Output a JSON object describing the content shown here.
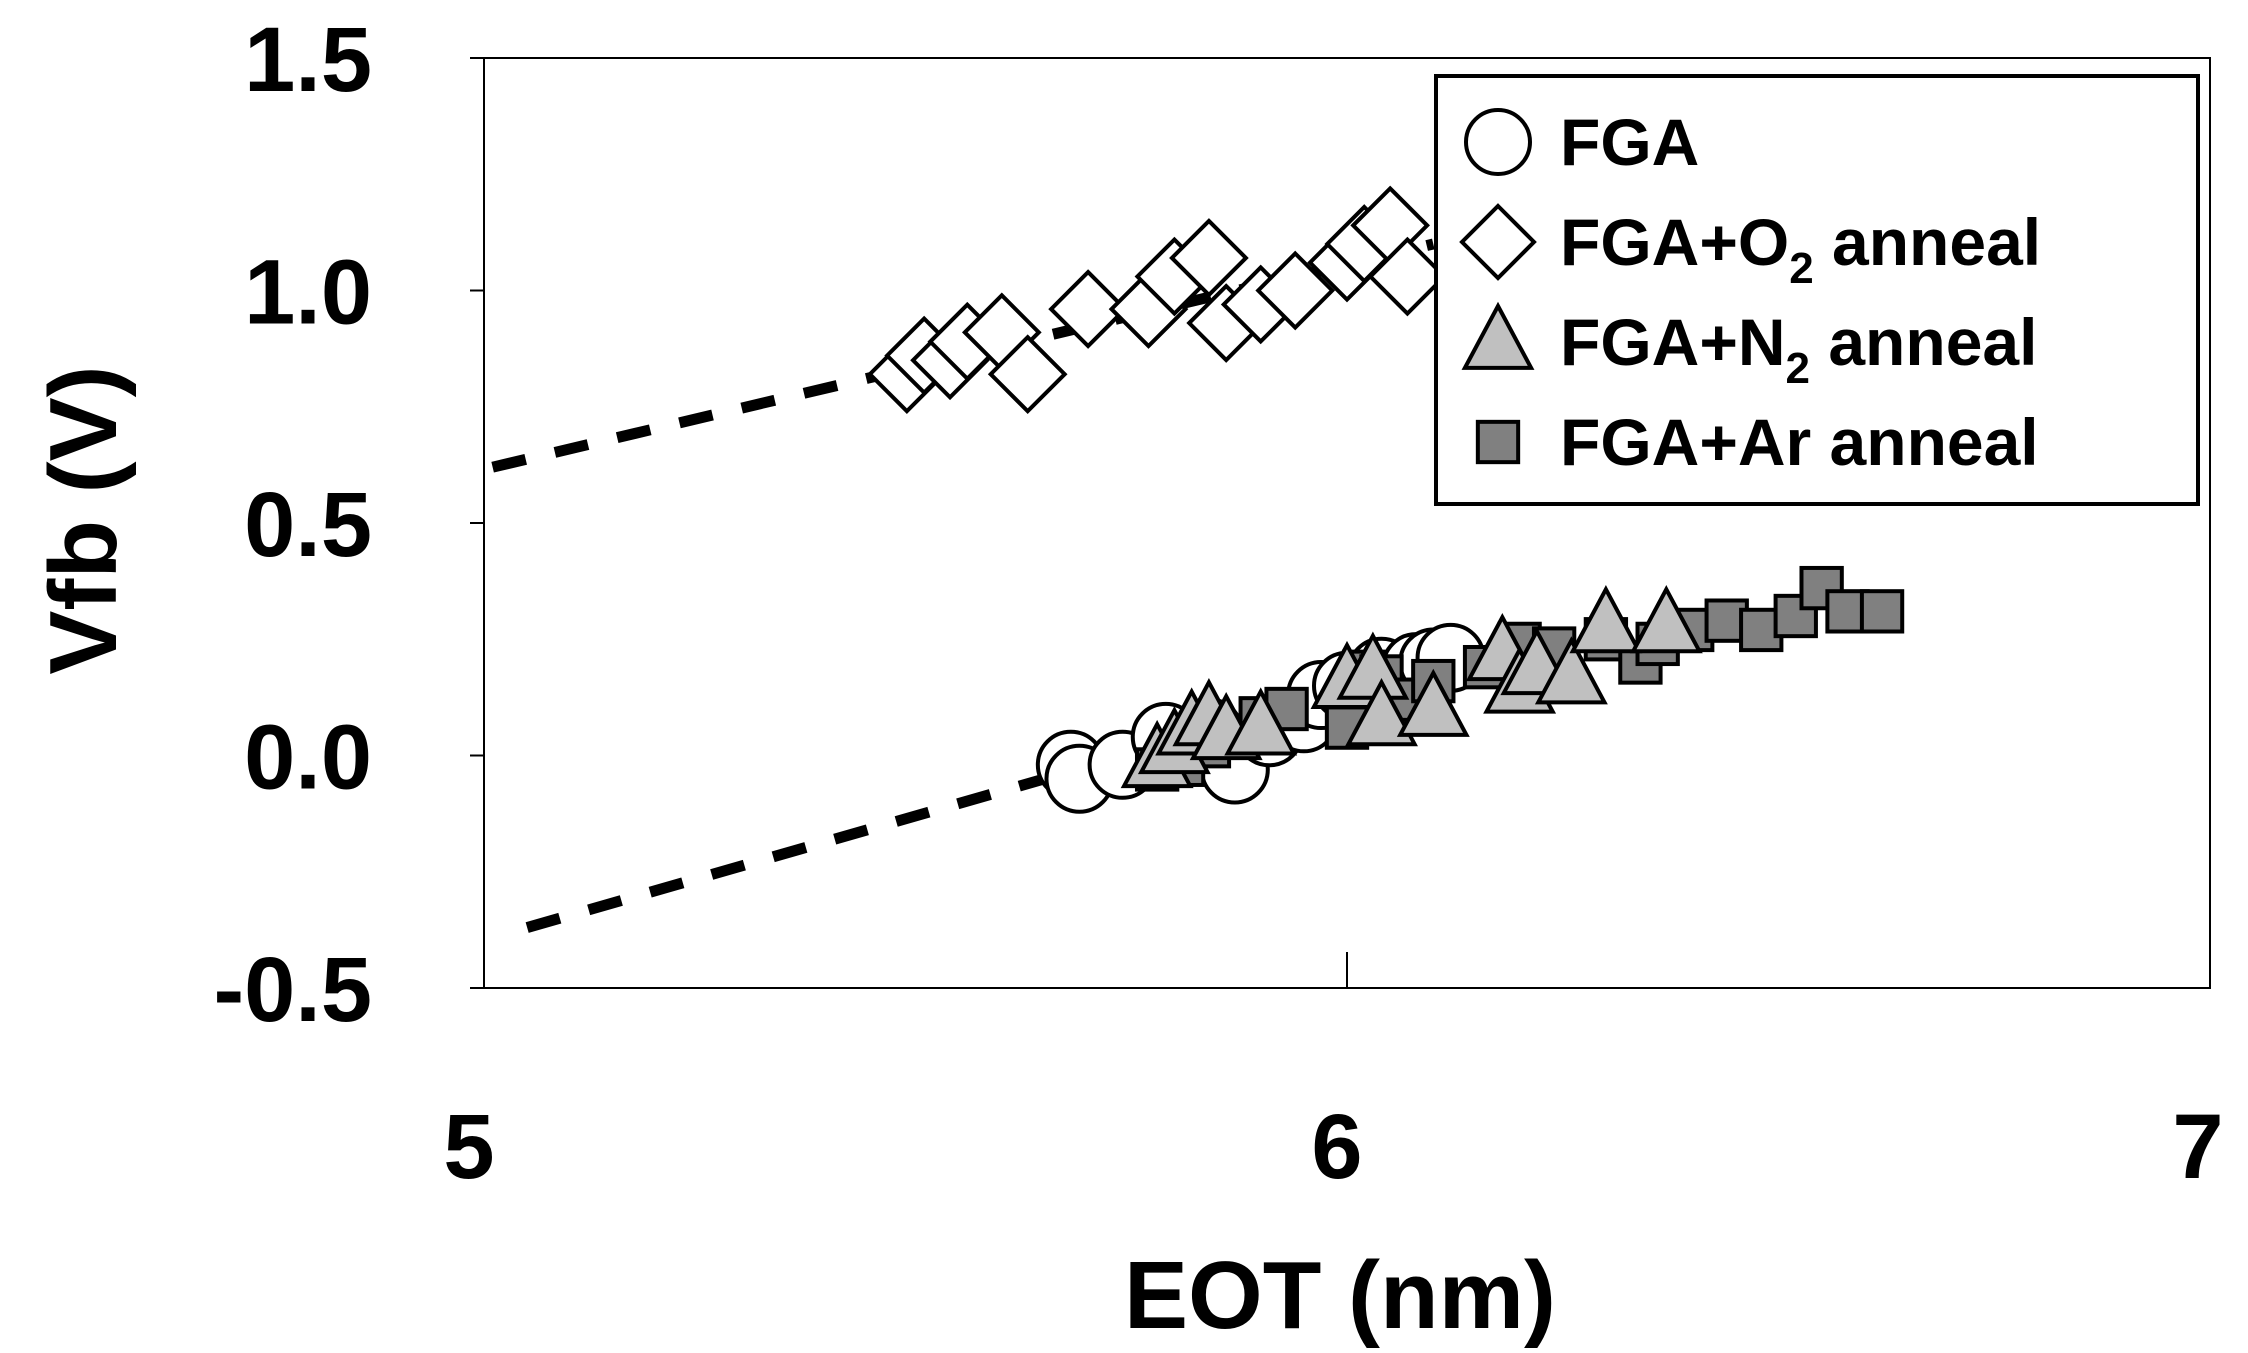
{
  "chart_data": {
    "type": "scatter",
    "title": "",
    "xlabel": "EOT (nm)",
    "ylabel": "Vfb (V)",
    "xlim": [
      5,
      7
    ],
    "ylim": [
      -0.5,
      1.5
    ],
    "x_ticks": [
      {
        "value": 5,
        "label": "5"
      },
      {
        "value": 6,
        "label": "6"
      },
      {
        "value": 7,
        "label": "7"
      }
    ],
    "y_ticks": [
      {
        "value": 1.5,
        "label": "1.5"
      },
      {
        "value": 1.0,
        "label": "1.0"
      },
      {
        "value": 0.5,
        "label": "0.5"
      },
      {
        "value": 0.0,
        "label": "0.0"
      },
      {
        "value": -0.5,
        "label": "-0.5"
      }
    ],
    "grid": false,
    "legend_position": "top-right",
    "series": [
      {
        "name": "FGA",
        "legend": {
          "main": "FGA",
          "sub": "",
          "rest": ""
        },
        "marker": "circle",
        "fill": "#ffffff",
        "points": [
          [
            5.68,
            -0.02
          ],
          [
            5.69,
            -0.05
          ],
          [
            5.74,
            -0.02
          ],
          [
            5.79,
            0.04
          ],
          [
            5.82,
            0.01
          ],
          [
            5.84,
            0.05
          ],
          [
            5.87,
            -0.03
          ],
          [
            5.91,
            0.05
          ],
          [
            5.95,
            0.08
          ],
          [
            5.97,
            0.13
          ],
          [
            6.0,
            0.15
          ],
          [
            6.04,
            0.18
          ],
          [
            6.08,
            0.19
          ],
          [
            6.1,
            0.2
          ],
          [
            6.12,
            0.21
          ]
        ]
      },
      {
        "name": "FGA+O2 anneal",
        "legend": {
          "main": "FGA+O",
          "sub": "2",
          "rest": " anneal"
        },
        "marker": "diamond",
        "fill": "#ffffff",
        "points": [
          [
            5.49,
            0.82
          ],
          [
            5.51,
            0.86
          ],
          [
            5.54,
            0.85
          ],
          [
            5.56,
            0.89
          ],
          [
            5.6,
            0.91
          ],
          [
            5.63,
            0.82
          ],
          [
            5.7,
            0.96
          ],
          [
            5.77,
            0.96
          ],
          [
            5.8,
            1.03
          ],
          [
            5.84,
            1.07
          ],
          [
            5.86,
            0.93
          ],
          [
            5.9,
            0.97
          ],
          [
            5.94,
            1.0
          ],
          [
            6.0,
            1.06
          ],
          [
            6.02,
            1.1
          ],
          [
            6.05,
            1.14
          ],
          [
            6.07,
            1.03
          ]
        ]
      },
      {
        "name": "FGA+N2 anneal",
        "legend": {
          "main": "FGA+N",
          "sub": "2",
          "rest": " anneal"
        },
        "marker": "triangle",
        "fill": "#c0c0c0",
        "points": [
          [
            5.78,
            -0.01
          ],
          [
            5.8,
            0.02
          ],
          [
            5.82,
            0.06
          ],
          [
            5.84,
            0.08
          ],
          [
            5.86,
            0.05
          ],
          [
            5.9,
            0.06
          ],
          [
            6.0,
            0.16
          ],
          [
            6.03,
            0.18
          ],
          [
            6.04,
            0.08
          ],
          [
            6.1,
            0.1
          ],
          [
            6.18,
            0.22
          ],
          [
            6.2,
            0.15
          ],
          [
            6.22,
            0.19
          ],
          [
            6.26,
            0.17
          ],
          [
            6.3,
            0.28
          ],
          [
            6.37,
            0.28
          ]
        ]
      },
      {
        "name": "FGA+Ar anneal",
        "legend": {
          "main": "FGA+Ar anneal",
          "sub": "",
          "rest": ""
        },
        "marker": "square",
        "fill": "#808080",
        "points": [
          [
            5.78,
            -0.03
          ],
          [
            5.81,
            -0.02
          ],
          [
            5.84,
            0.02
          ],
          [
            5.9,
            0.08
          ],
          [
            5.93,
            0.1
          ],
          [
            6.0,
            0.06
          ],
          [
            6.02,
            0.18
          ],
          [
            6.04,
            0.17
          ],
          [
            6.06,
            0.12
          ],
          [
            6.1,
            0.16
          ],
          [
            6.16,
            0.19
          ],
          [
            6.2,
            0.24
          ],
          [
            6.22,
            0.16
          ],
          [
            6.24,
            0.23
          ],
          [
            6.3,
            0.25
          ],
          [
            6.34,
            0.2
          ],
          [
            6.36,
            0.24
          ],
          [
            6.4,
            0.27
          ],
          [
            6.44,
            0.29
          ],
          [
            6.48,
            0.27
          ],
          [
            6.52,
            0.3
          ],
          [
            6.55,
            0.36
          ],
          [
            6.58,
            0.31
          ],
          [
            6.62,
            0.31
          ]
        ]
      }
    ],
    "trendlines": [
      {
        "style": "dotted",
        "from": [
          5.01,
          0.62
        ],
        "to": [
          6.1,
          1.1
        ]
      },
      {
        "style": "dotted",
        "from": [
          5.05,
          -0.37
        ],
        "to": [
          6.1,
          0.19
        ]
      }
    ]
  }
}
